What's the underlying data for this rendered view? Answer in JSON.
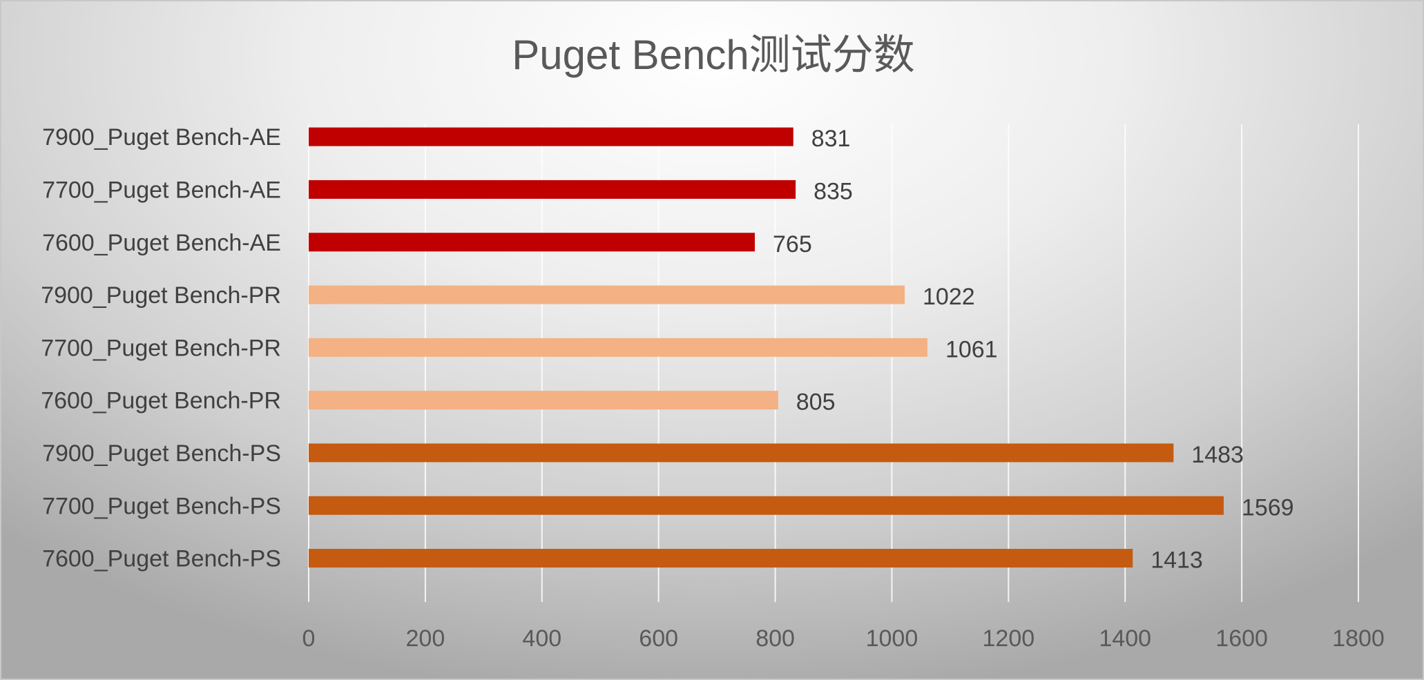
{
  "chart_data": {
    "type": "bar",
    "orientation": "horizontal",
    "title": "Puget Bench测试分数",
    "categories": [
      "7900_Puget Bench-AE",
      "7700_Puget Bench-AE",
      "7600_Puget Bench-AE",
      "7900_Puget Bench-PR",
      "7700_Puget Bench-PR",
      "7600_Puget Bench-PR",
      "7900_Puget Bench-PS",
      "7700_Puget Bench-PS",
      "7600_Puget Bench-PS"
    ],
    "values": [
      831,
      835,
      765,
      1022,
      1061,
      805,
      1483,
      1569,
      1413
    ],
    "bar_colors": [
      "#c00000",
      "#c00000",
      "#c00000",
      "#f4b183",
      "#f4b183",
      "#f4b183",
      "#c55a11",
      "#c55a11",
      "#c55a11"
    ],
    "xlim": [
      0,
      1800
    ],
    "x_ticks": [
      "0",
      "200",
      "400",
      "600",
      "800",
      "1000",
      "1200",
      "1400",
      "1600",
      "1800"
    ],
    "grid": true,
    "legend": "none"
  }
}
